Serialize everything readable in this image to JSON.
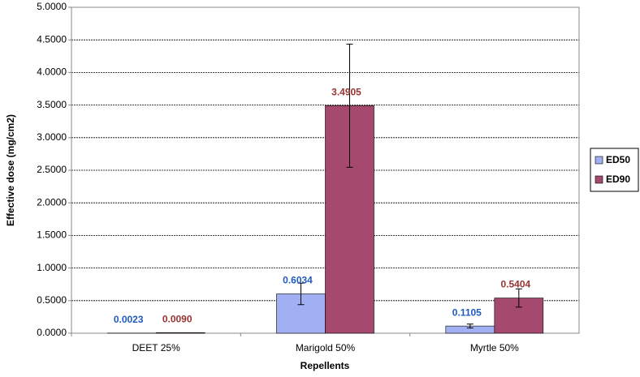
{
  "chart_data": {
    "type": "bar",
    "x_label": "Repellents",
    "y_label": "Effective dose (mg/cm2)",
    "categories": [
      "DEET 25%",
      "Marigold 50%",
      "Myrtle 50%"
    ],
    "series": [
      {
        "name": "ED50",
        "color": "#a0b0f2",
        "label_color": "#1f5bbf",
        "values": [
          0.0023,
          0.6034,
          0.1105
        ],
        "value_labels": [
          "0.0023",
          "0.6034",
          "0.1105"
        ],
        "errors": [
          0,
          0.165,
          0.03
        ]
      },
      {
        "name": "ED90",
        "color": "#a6496f",
        "label_color": "#993333",
        "values": [
          0.009,
          3.4905,
          0.5404
        ],
        "value_labels": [
          "0.0090",
          "3.4905",
          "0.5404"
        ],
        "errors": [
          0,
          0.945,
          0.14
        ]
      }
    ],
    "ylim": [
      0,
      5
    ],
    "yticks": [
      {
        "value": 0,
        "label": "0.0000"
      },
      {
        "value": 0.5,
        "label": "0.5000"
      },
      {
        "value": 1,
        "label": "1.0000"
      },
      {
        "value": 1.5,
        "label": "1.5000"
      },
      {
        "value": 2,
        "label": "2.0000"
      },
      {
        "value": 2.5,
        "label": "2.5000"
      },
      {
        "value": 3,
        "label": "3.0000"
      },
      {
        "value": 3.5,
        "label": "3.5000"
      },
      {
        "value": 4,
        "label": "4.0000"
      },
      {
        "value": 4.5,
        "label": "4.5000"
      },
      {
        "value": 5,
        "label": "5.0000"
      }
    ],
    "grid": true,
    "legend_position": "right"
  }
}
